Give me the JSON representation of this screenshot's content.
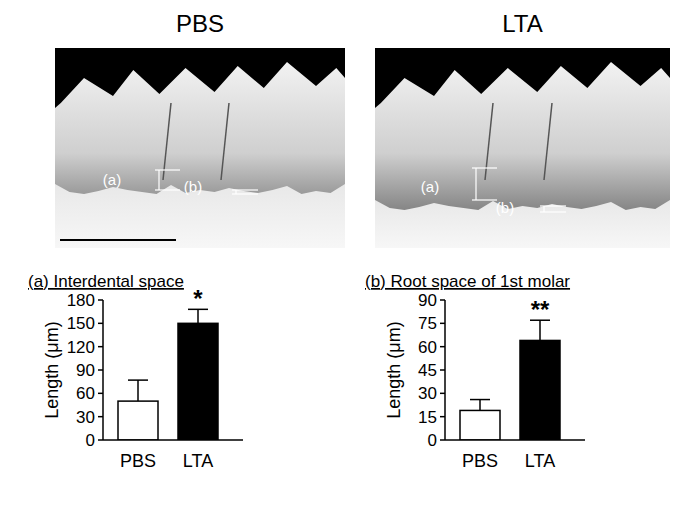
{
  "panels": [
    {
      "title": "PBS",
      "labels": [
        "(a)",
        "(b)"
      ]
    },
    {
      "title": "LTA",
      "labels": [
        "(a)",
        "(b)"
      ]
    }
  ],
  "chart_data": [
    {
      "type": "bar",
      "title": "(a) Interdental space",
      "y_label": "Length (μm)",
      "categories": [
        "PBS",
        "LTA"
      ],
      "values": [
        50,
        150
      ],
      "errors": [
        27,
        18
      ],
      "colors": [
        "#ffffff",
        "#000000"
      ],
      "ylim": [
        0,
        180
      ],
      "yticks": [
        0,
        30,
        60,
        90,
        120,
        150,
        180
      ],
      "grid": false,
      "annotations": [
        {
          "category": "LTA",
          "text": "*"
        }
      ]
    },
    {
      "type": "bar",
      "title": "(b) Root space of 1st molar",
      "y_label": "Length (μm)",
      "categories": [
        "PBS",
        "LTA"
      ],
      "values": [
        19,
        64
      ],
      "errors": [
        7,
        13
      ],
      "colors": [
        "#ffffff",
        "#000000"
      ],
      "ylim": [
        0,
        90
      ],
      "yticks": [
        0,
        15,
        30,
        45,
        60,
        75,
        90
      ],
      "grid": false,
      "annotations": [
        {
          "category": "LTA",
          "text": "**"
        }
      ]
    }
  ]
}
